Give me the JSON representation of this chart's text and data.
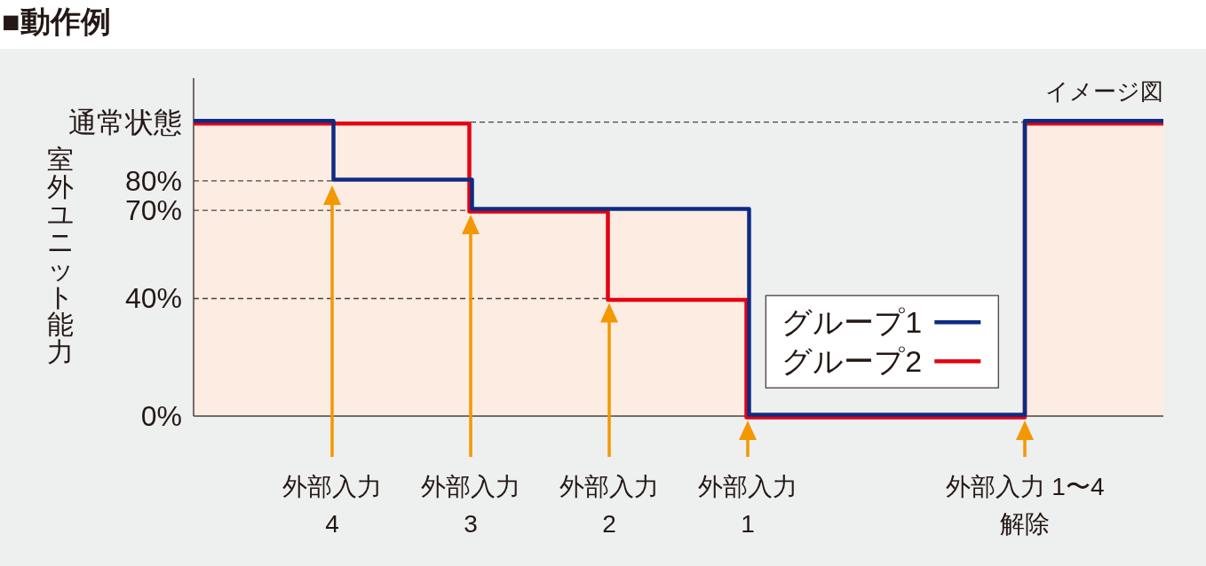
{
  "chart_data": {
    "type": "step",
    "title": "■動作例",
    "ylabel": "室外ユニット能力",
    "annotations": [
      "イメージ図"
    ],
    "categories": [
      null,
      "外部入力\n4",
      "外部入力\n3",
      "外部入力\n2",
      "外部入力\n1",
      null,
      "外部入力 1〜4\n解除",
      null
    ],
    "series": [
      {
        "type": "area",
        "color": "#fdece2",
        "values": [
          100,
          100,
          70,
          70,
          0,
          0,
          100,
          100
        ]
      },
      {
        "name": "グループ1",
        "color": "#0c2c84",
        "values": [
          100,
          80,
          70,
          70,
          0,
          0,
          100,
          100
        ]
      },
      {
        "name": "グループ2",
        "color": "#e60012",
        "values": [
          100,
          100,
          70,
          40,
          0,
          0,
          100,
          100
        ]
      }
    ],
    "ylim": [
      0,
      115
    ],
    "yticks": [
      {
        "value": 0,
        "label": "0%"
      },
      {
        "value": 40,
        "label": "40%"
      },
      {
        "value": 70,
        "label": "70%"
      },
      {
        "value": 80,
        "label": "80%"
      },
      {
        "value": 100,
        "label": "通常状態"
      }
    ],
    "ref_lines": [
      {
        "axis": "y",
        "value": 100,
        "line_style": "dashed",
        "color": "#4a4040"
      },
      {
        "axis": "y",
        "value": 80,
        "line_style": "dashed",
        "color": "#4a4040"
      },
      {
        "axis": "y",
        "value": 70,
        "line_style": "dashed",
        "color": "#4a4040"
      },
      {
        "axis": "y",
        "value": 40,
        "line_style": "dashed",
        "color": "#4a4040"
      }
    ],
    "legend": "right"
  }
}
